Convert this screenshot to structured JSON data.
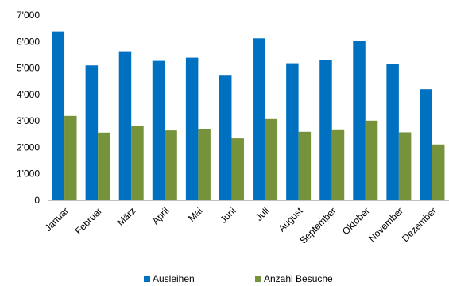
{
  "chart_data": {
    "type": "bar",
    "categories": [
      "Januar",
      "Februar",
      "März",
      "April",
      "Mai",
      "Juni",
      "Juli",
      "August",
      "September",
      "Oktober",
      "November",
      "Dezember"
    ],
    "series": [
      {
        "name": "Ausleihen",
        "color": "#0070C0",
        "values": [
          6380,
          5100,
          5630,
          5270,
          5390,
          4710,
          6120,
          5180,
          5300,
          6030,
          5150,
          4200
        ]
      },
      {
        "name": "Anzahl Besuche",
        "color": "#76933C",
        "values": [
          3190,
          2560,
          2820,
          2640,
          2690,
          2340,
          3070,
          2590,
          2650,
          3010,
          2570,
          2110
        ]
      }
    ],
    "y_ticks": [
      "0",
      "1'000",
      "2'000",
      "3'000",
      "4'000",
      "5'000",
      "6'000",
      "7'000"
    ],
    "ylim": [
      0,
      7000
    ],
    "grid": false,
    "legend_position": "bottom",
    "title": "",
    "xlabel": "",
    "ylabel": ""
  }
}
